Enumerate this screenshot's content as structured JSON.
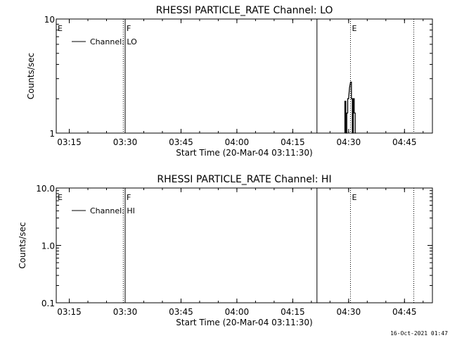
{
  "footer": {
    "timestamp": "16-Oct-2021 01:47"
  },
  "chart_data": [
    {
      "type": "line",
      "title": "RHESSI PARTICLE_RATE Channel: LO",
      "xlabel": "Start Time (20-Mar-04 03:11:30)",
      "ylabel": "Counts/sec",
      "y_scale": "log",
      "ylim": [
        1,
        10
      ],
      "y_ticks": [
        "1",
        "10"
      ],
      "xlim": [
        "03:11:30",
        "04:52:30"
      ],
      "x_ticks": [
        "03:15",
        "03:30",
        "03:45",
        "04:00",
        "04:15",
        "04:30",
        "04:45"
      ],
      "legend": {
        "position": "top-left",
        "entries": [
          "Channel: LO"
        ]
      },
      "markers": [
        {
          "time": "03:11:30",
          "label": "E",
          "style": "dotted"
        },
        {
          "time": "03:29:30",
          "label": "",
          "style": "dotted"
        },
        {
          "time": "03:30:00",
          "label": "F",
          "style": "solid"
        },
        {
          "time": "04:21:30",
          "label": "",
          "style": "solid"
        },
        {
          "time": "04:30:30",
          "label": "E",
          "style": "dotted"
        },
        {
          "time": "04:47:30",
          "label": "",
          "style": "dotted"
        }
      ],
      "series": [
        {
          "name": "Channel: LO",
          "x": [
            "04:29:00",
            "04:29:00",
            "04:29:15",
            "04:29:15",
            "04:29:30",
            "04:29:30",
            "04:29:45",
            "04:29:45",
            "04:30:00",
            "04:30:15",
            "04:30:30",
            "04:30:45",
            "04:30:45",
            "04:31:00",
            "04:31:00",
            "04:31:15",
            "04:31:15",
            "04:31:30",
            "04:31:30",
            "04:31:45",
            "04:31:45",
            "04:32:00",
            "04:32:00"
          ],
          "values": [
            1,
            1.9,
            1.9,
            1,
            1,
            1.5,
            1.5,
            2,
            2,
            2.5,
            2.8,
            2.8,
            2,
            2,
            1,
            1,
            2,
            2,
            1.5,
            1.5,
            1,
            1,
            1
          ]
        }
      ]
    },
    {
      "type": "line",
      "title": "RHESSI PARTICLE_RATE Channel: HI",
      "xlabel": "Start Time (20-Mar-04 03:11:30)",
      "ylabel": "Counts/sec",
      "y_scale": "log",
      "ylim": [
        0.1,
        10
      ],
      "y_ticks": [
        "0.1",
        "1.0",
        "10.0"
      ],
      "xlim": [
        "03:11:30",
        "04:52:30"
      ],
      "x_ticks": [
        "03:15",
        "03:30",
        "03:45",
        "04:00",
        "04:15",
        "04:30",
        "04:45"
      ],
      "legend": {
        "position": "top-left",
        "entries": [
          "Channel: HI"
        ]
      },
      "markers": [
        {
          "time": "03:11:30",
          "label": "E",
          "style": "dotted"
        },
        {
          "time": "03:29:30",
          "label": "",
          "style": "dotted"
        },
        {
          "time": "03:30:00",
          "label": "F",
          "style": "solid"
        },
        {
          "time": "04:21:30",
          "label": "",
          "style": "solid"
        },
        {
          "time": "04:30:30",
          "label": "E",
          "style": "dotted"
        },
        {
          "time": "04:47:30",
          "label": "",
          "style": "dotted"
        }
      ],
      "series": [
        {
          "name": "Channel: HI",
          "x": [],
          "values": []
        }
      ]
    }
  ]
}
